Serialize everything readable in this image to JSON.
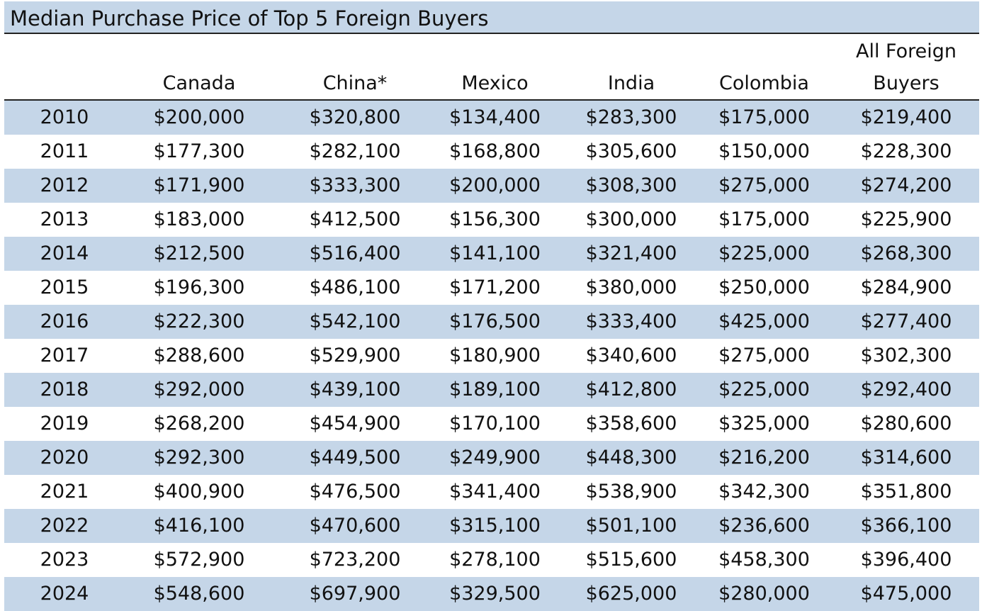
{
  "title": "Median Purchase Price of Top 5 Foreign Buyers",
  "colors": {
    "band": "#c5d6e8",
    "rule": "#222222",
    "text": "#111111"
  },
  "chart_data": {
    "type": "table",
    "title": "Median Purchase Price of Top 5 Foreign Buyers",
    "columns": [
      "Canada",
      "China*",
      "Mexico",
      "India",
      "Colombia",
      "All Foreign Buyers"
    ],
    "header": {
      "year": "",
      "cols": [
        {
          "line1": "",
          "line2": "Canada"
        },
        {
          "line1": "",
          "line2": "China*"
        },
        {
          "line1": "",
          "line2": "Mexico"
        },
        {
          "line1": "",
          "line2": "India"
        },
        {
          "line1": "",
          "line2": "Colombia"
        },
        {
          "line1": "All Foreign",
          "line2": "Buyers"
        }
      ]
    },
    "rows": [
      {
        "year": "2010",
        "values": [
          "$200,000",
          "$320,800",
          "$134,400",
          "$283,300",
          "$175,000",
          "$219,400"
        ]
      },
      {
        "year": "2011",
        "values": [
          "$177,300",
          "$282,100",
          "$168,800",
          "$305,600",
          "$150,000",
          "$228,300"
        ]
      },
      {
        "year": "2012",
        "values": [
          "$171,900",
          "$333,300",
          "$200,000",
          "$308,300",
          "$275,000",
          "$274,200"
        ]
      },
      {
        "year": "2013",
        "values": [
          "$183,000",
          "$412,500",
          "$156,300",
          "$300,000",
          "$175,000",
          "$225,900"
        ]
      },
      {
        "year": "2014",
        "values": [
          "$212,500",
          "$516,400",
          "$141,100",
          "$321,400",
          "$225,000",
          "$268,300"
        ]
      },
      {
        "year": "2015",
        "values": [
          "$196,300",
          "$486,100",
          "$171,200",
          "$380,000",
          "$250,000",
          "$284,900"
        ]
      },
      {
        "year": "2016",
        "values": [
          "$222,300",
          "$542,100",
          "$176,500",
          "$333,400",
          "$425,000",
          "$277,400"
        ]
      },
      {
        "year": "2017",
        "values": [
          "$288,600",
          "$529,900",
          "$180,900",
          "$340,600",
          "$275,000",
          "$302,300"
        ]
      },
      {
        "year": "2018",
        "values": [
          "$292,000",
          "$439,100",
          "$189,100",
          "$412,800",
          "$225,000",
          "$292,400"
        ]
      },
      {
        "year": "2019",
        "values": [
          "$268,200",
          "$454,900",
          "$170,100",
          "$358,600",
          "$325,000",
          "$280,600"
        ]
      },
      {
        "year": "2020",
        "values": [
          "$292,300",
          "$449,500",
          "$249,900",
          "$448,300",
          "$216,200",
          "$314,600"
        ]
      },
      {
        "year": "2021",
        "values": [
          "$400,900",
          "$476,500",
          "$341,400",
          "$538,900",
          "$342,300",
          "$351,800"
        ]
      },
      {
        "year": "2022",
        "values": [
          "$416,100",
          "$470,600",
          "$315,100",
          "$501,100",
          "$236,600",
          "$366,100"
        ]
      },
      {
        "year": "2023",
        "values": [
          "$572,900",
          "$723,200",
          "$278,100",
          "$515,600",
          "$458,300",
          "$396,400"
        ]
      },
      {
        "year": "2024",
        "values": [
          "$548,600",
          "$697,900",
          "$329,500",
          "$625,000",
          "$280,000",
          "$475,000"
        ]
      }
    ]
  }
}
